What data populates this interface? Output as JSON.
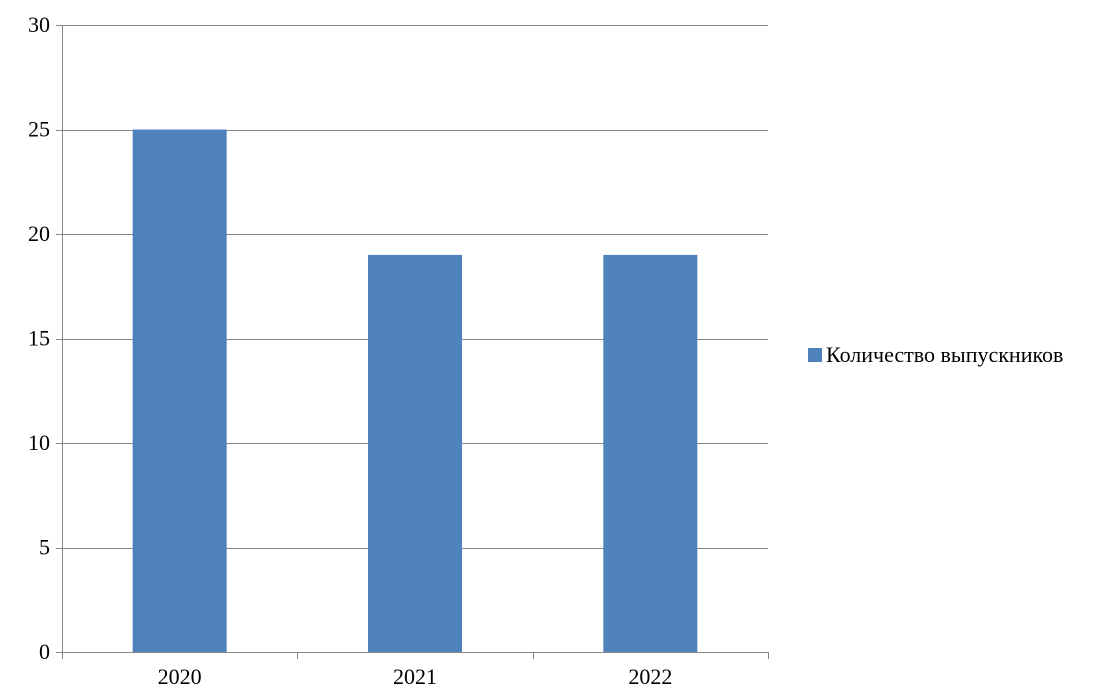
{
  "chart_data": {
    "type": "bar",
    "categories": [
      "2020",
      "2021",
      "2022"
    ],
    "series": [
      {
        "name": "Количество выпускников",
        "values": [
          25,
          19,
          19
        ],
        "color": "#4F81BD"
      }
    ],
    "ylim": [
      0,
      30
    ],
    "yticks": [
      0,
      5,
      10,
      15,
      20,
      25,
      30
    ],
    "grid": true,
    "legend_position": "right",
    "gridline_color": "#868686",
    "axis_color": "#868686"
  }
}
